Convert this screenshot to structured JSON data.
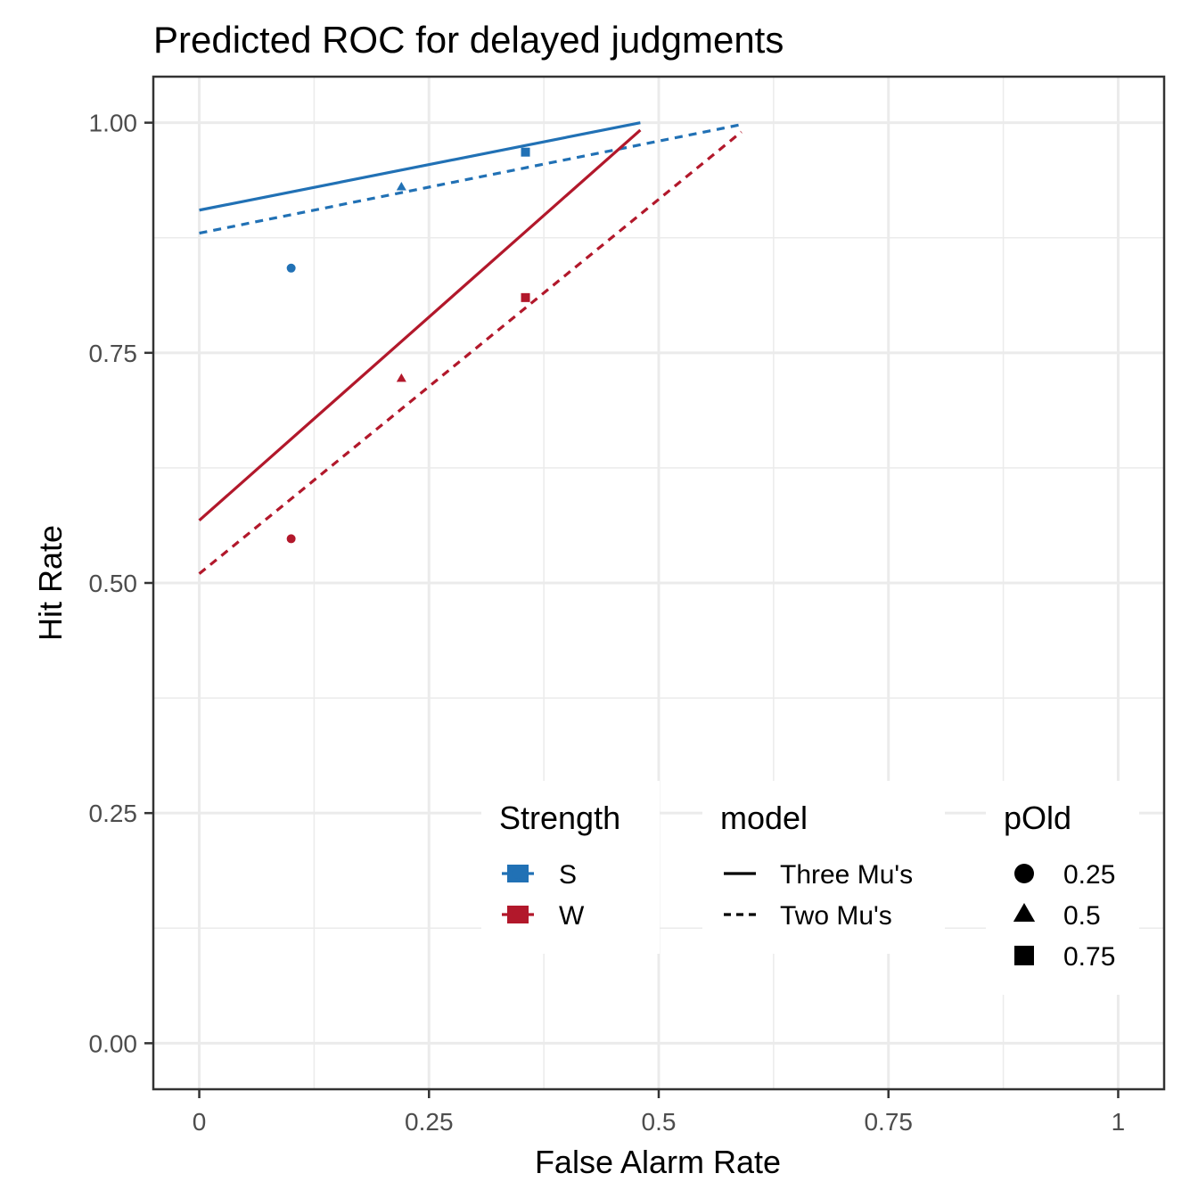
{
  "chart_data": {
    "type": "scatter",
    "title": "Predicted ROC for delayed judgments",
    "xlabel": "False Alarm Rate",
    "ylabel": "Hit Rate",
    "xlim": [
      -0.05,
      1.05
    ],
    "ylim": [
      -0.05,
      1.05
    ],
    "x_ticks": [
      0,
      0.25,
      0.5,
      0.75,
      1
    ],
    "x_tick_labels": [
      "0",
      "0.25",
      "0.5",
      "0.75",
      "1"
    ],
    "y_ticks": [
      0,
      0.25,
      0.5,
      0.75,
      1
    ],
    "y_tick_labels": [
      "0.00",
      "0.25",
      "0.50",
      "0.75",
      "1.00"
    ],
    "grid": true,
    "legend_position": "bottom-right inside",
    "colors": {
      "S": "#2171b5",
      "W": "#b2182b"
    },
    "lines": [
      {
        "strength": "S",
        "model": "Three Mu's",
        "x": [
          0,
          0.48
        ],
        "y": [
          0.905,
          1.0
        ]
      },
      {
        "strength": "S",
        "model": "Two Mu's",
        "x": [
          0,
          0.59
        ],
        "y": [
          0.88,
          0.998
        ]
      },
      {
        "strength": "W",
        "model": "Three Mu's",
        "x": [
          0,
          0.48
        ],
        "y": [
          0.568,
          0.992
        ]
      },
      {
        "strength": "W",
        "model": "Two Mu's",
        "x": [
          0,
          0.59
        ],
        "y": [
          0.51,
          0.99
        ]
      }
    ],
    "points": [
      {
        "strength": "S",
        "pOld": "0.25",
        "x": 0.1,
        "y": 0.842
      },
      {
        "strength": "S",
        "pOld": "0.5",
        "x": 0.22,
        "y": 0.93
      },
      {
        "strength": "S",
        "pOld": "0.75",
        "x": 0.355,
        "y": 0.968
      },
      {
        "strength": "W",
        "pOld": "0.25",
        "x": 0.1,
        "y": 0.548
      },
      {
        "strength": "W",
        "pOld": "0.5",
        "x": 0.22,
        "y": 0.722
      },
      {
        "strength": "W",
        "pOld": "0.75",
        "x": 0.355,
        "y": 0.81
      }
    ],
    "legends": {
      "strength": {
        "title": "Strength",
        "items": [
          {
            "key": "S",
            "label": "S"
          },
          {
            "key": "W",
            "label": "W"
          }
        ]
      },
      "model": {
        "title": "model",
        "items": [
          {
            "label": "Three Mu's",
            "linetype": "solid"
          },
          {
            "label": "Two Mu's",
            "linetype": "dashed"
          }
        ]
      },
      "pOld": {
        "title": "pOld",
        "items": [
          {
            "label": "0.25",
            "shape": "circle"
          },
          {
            "label": "0.5",
            "shape": "triangle"
          },
          {
            "label": "0.75",
            "shape": "square"
          }
        ]
      }
    }
  }
}
